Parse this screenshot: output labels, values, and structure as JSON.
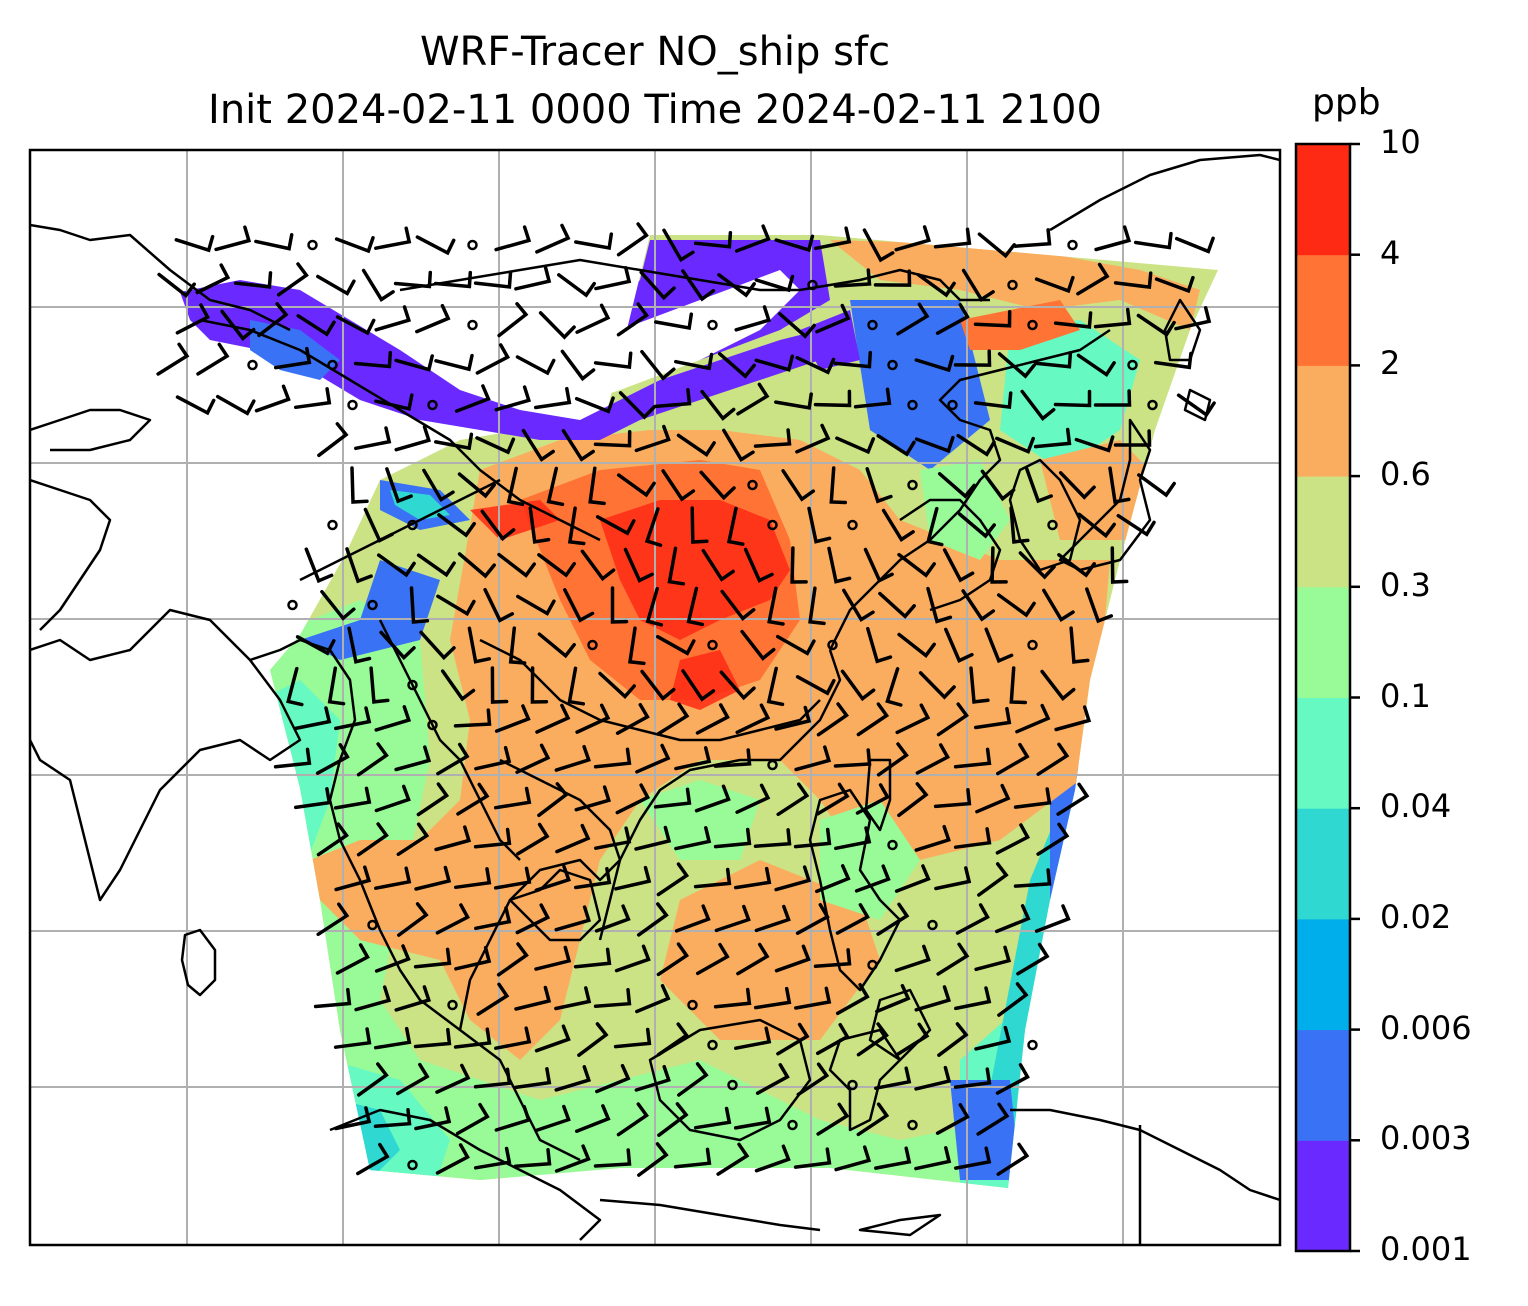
{
  "title": {
    "line1": "WRF-Tracer NO_ship sfc",
    "line2": "Init 2024-02-11 0000 Time 2024-02-11 2100"
  },
  "colorbar": {
    "unit": "ppb",
    "levels": [
      "0.001",
      "0.003",
      "0.006",
      "0.02",
      "0.04",
      "0.1",
      "0.3",
      "0.6",
      "2",
      "4",
      "10"
    ],
    "colors": [
      "#6a2aff",
      "#3a72f5",
      "#00aeeb",
      "#2fd9d2",
      "#66f9c2",
      "#98fb98",
      "#cbe384",
      "#fbad5f",
      "#ff7335",
      "#ff2a14"
    ]
  },
  "map": {
    "gridlines": true,
    "colors": {
      "coastline": "#000000",
      "grid": "#b0b0b0",
      "wind_barb": "#000000",
      "no_data": "#ffffff"
    }
  }
}
